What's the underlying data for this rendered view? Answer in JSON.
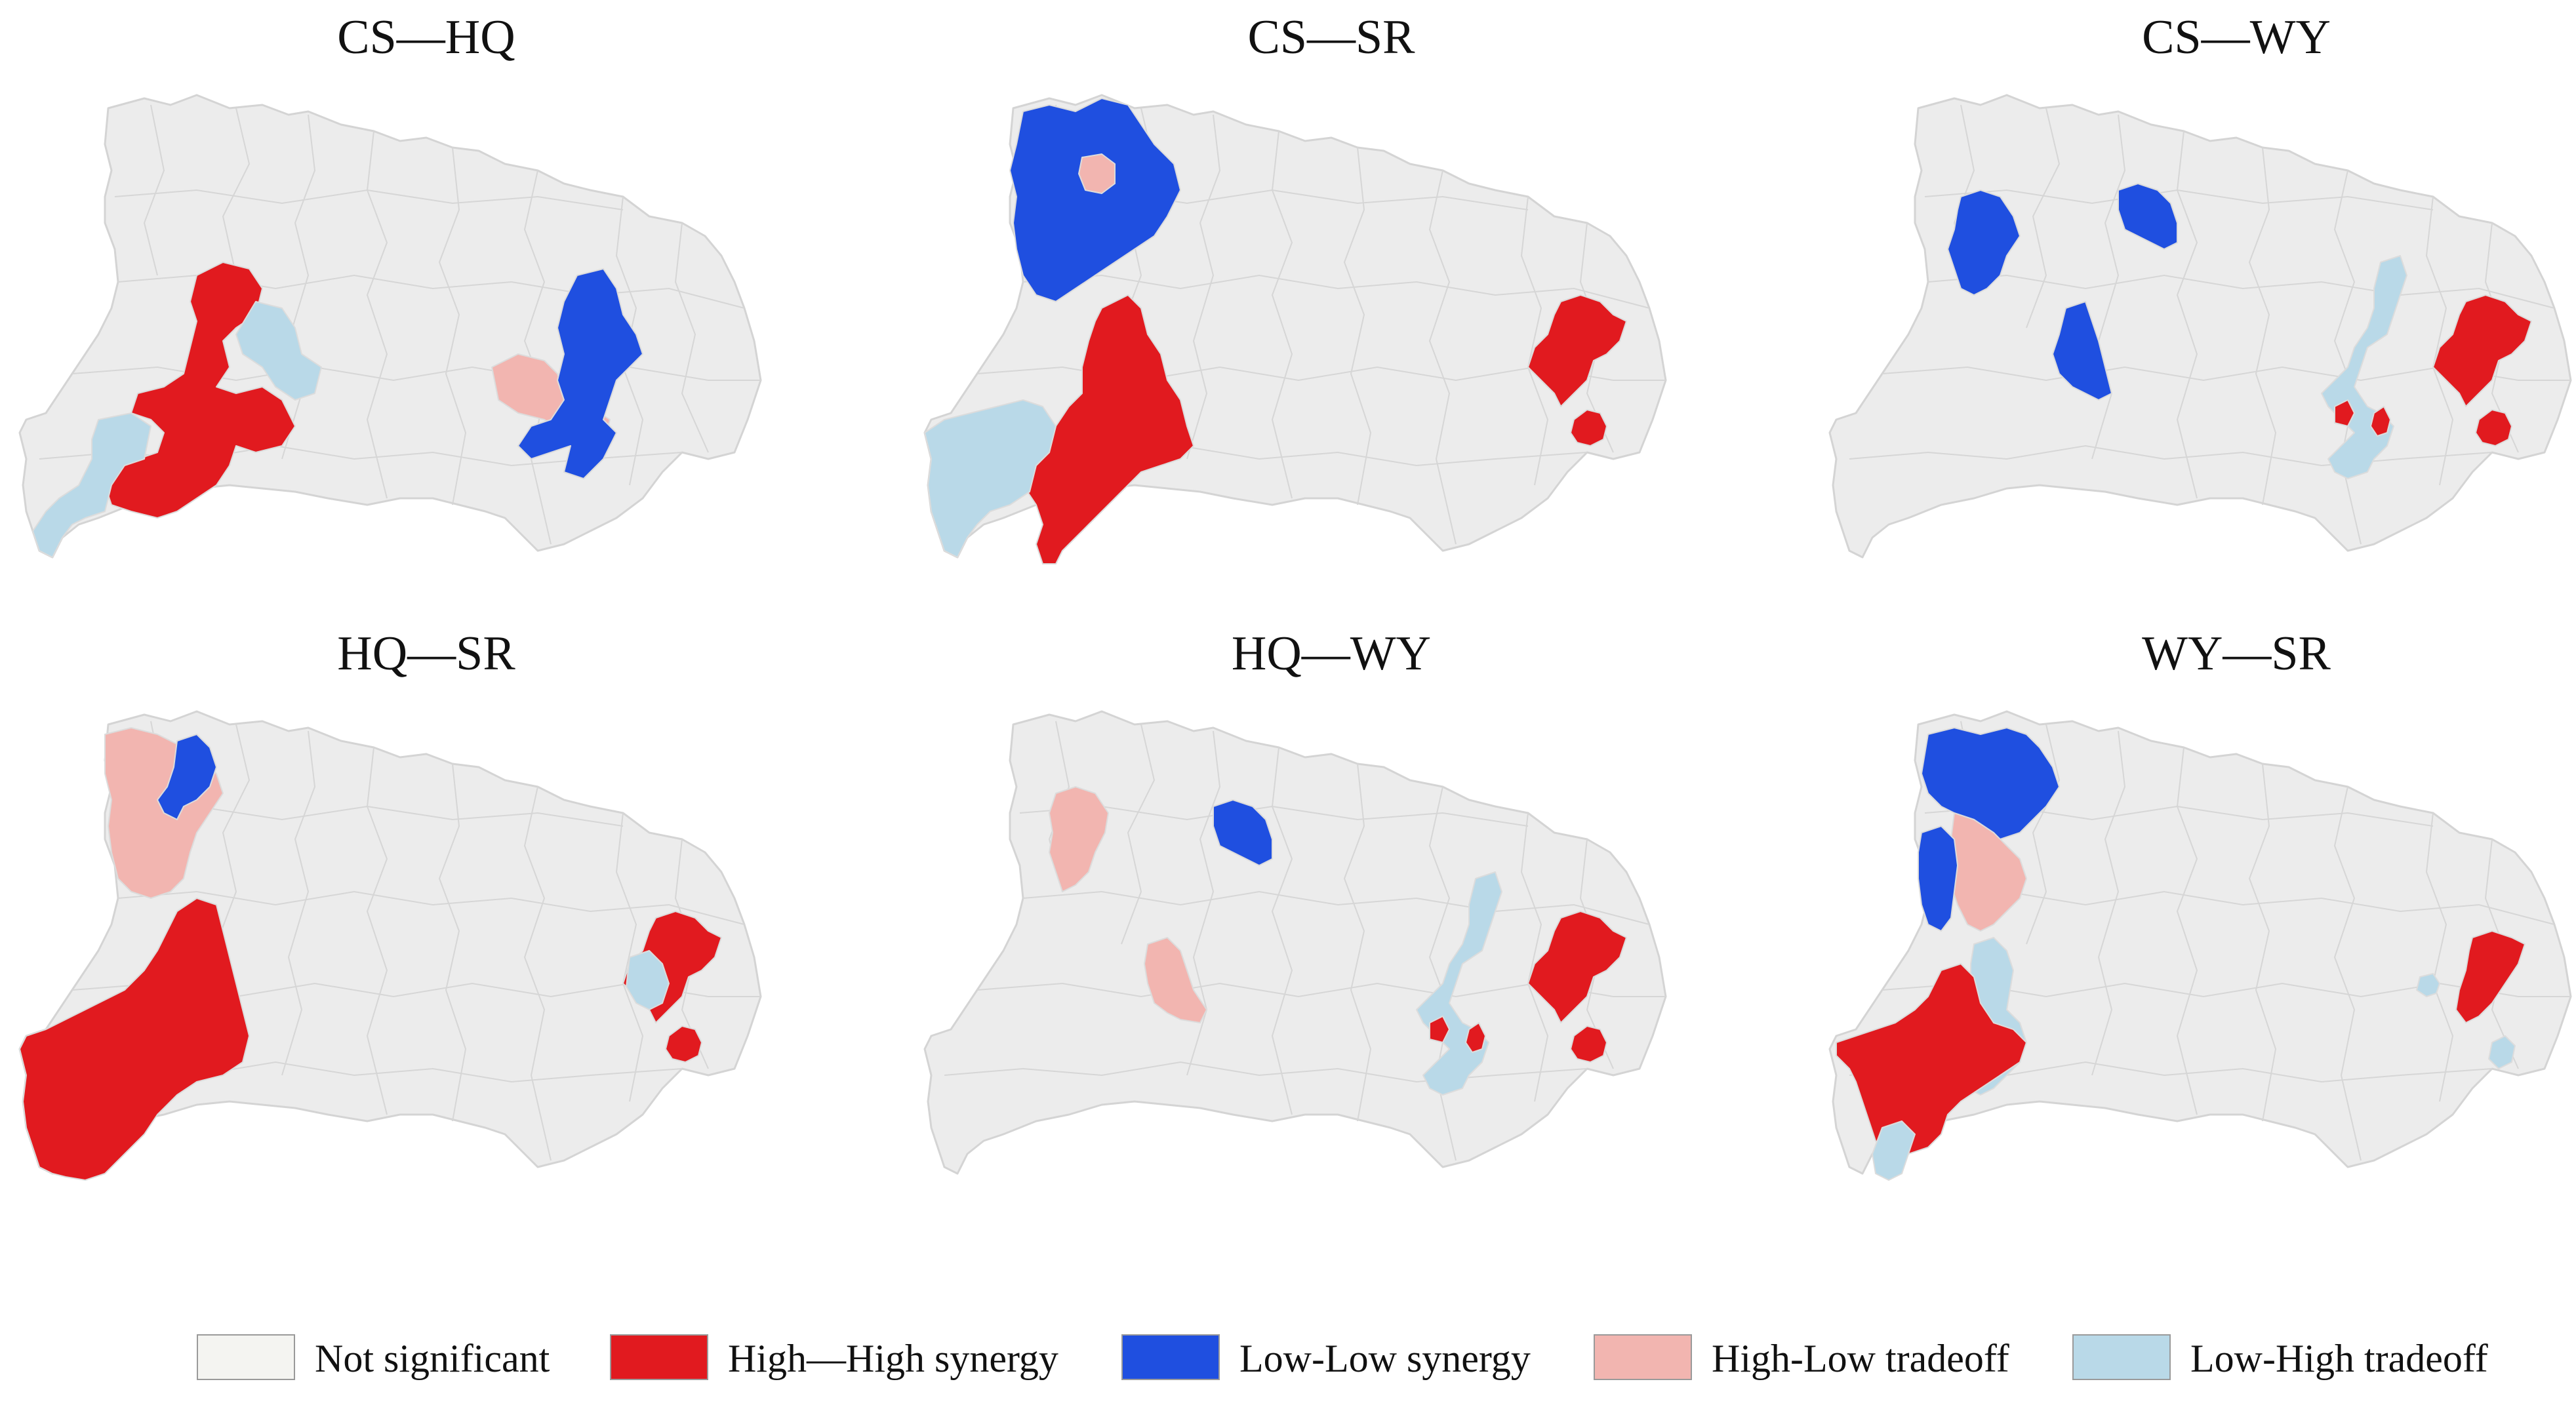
{
  "colors": {
    "not_significant": "#f4f4f1",
    "base_fill": "#ececec",
    "high_high": "#e11a1f",
    "low_low": "#1f4fe0",
    "high_low": "#f2b5b0",
    "low_high": "#b9d9e8"
  },
  "panels": [
    {
      "title": "CS—HQ",
      "patches": [
        {
          "cls": "high_high",
          "shape": "westA"
        },
        {
          "cls": "low_high",
          "shape": "nwStripA"
        },
        {
          "cls": "low_high",
          "shape": "swSmallA"
        },
        {
          "cls": "high_low",
          "shape": "centerSmallA"
        },
        {
          "cls": "low_low",
          "shape": "eastBlueA"
        }
      ]
    },
    {
      "title": "CS—SR",
      "patches": [
        {
          "cls": "low_low",
          "shape": "northBlock"
        },
        {
          "cls": "high_low",
          "shape": "northHole"
        },
        {
          "cls": "high_high",
          "shape": "westCentral"
        },
        {
          "cls": "low_high",
          "shape": "swBlock"
        },
        {
          "cls": "high_high",
          "shape": "eastRed"
        },
        {
          "cls": "high_high",
          "shape": "eastSmallRed"
        }
      ]
    },
    {
      "title": "CS—WY",
      "patches": [
        {
          "cls": "low_low",
          "shape": "nwBlue1"
        },
        {
          "cls": "low_low",
          "shape": "nBlue2"
        },
        {
          "cls": "low_low",
          "shape": "cBlue3"
        },
        {
          "cls": "low_high",
          "shape": "eastLightBand"
        },
        {
          "cls": "high_high",
          "shape": "eastRed"
        },
        {
          "cls": "high_high",
          "shape": "eastSmallRed"
        },
        {
          "cls": "high_high",
          "shape": "centerRedDots"
        }
      ]
    },
    {
      "title": "HQ—SR",
      "patches": [
        {
          "cls": "high_low",
          "shape": "northPink"
        },
        {
          "cls": "low_low",
          "shape": "northBlueSmall"
        },
        {
          "cls": "high_high",
          "shape": "westRedBig"
        },
        {
          "cls": "high_high",
          "shape": "eastRed"
        },
        {
          "cls": "low_high",
          "shape": "eastLightSmall"
        },
        {
          "cls": "high_high",
          "shape": "eastSmallRed"
        }
      ]
    },
    {
      "title": "HQ—WY",
      "patches": [
        {
          "cls": "high_low",
          "shape": "nwPink"
        },
        {
          "cls": "high_low",
          "shape": "cPink"
        },
        {
          "cls": "low_low",
          "shape": "nBlue2"
        },
        {
          "cls": "low_high",
          "shape": "eastLightBand"
        },
        {
          "cls": "high_high",
          "shape": "eastRed"
        },
        {
          "cls": "high_high",
          "shape": "eastSmallRed"
        },
        {
          "cls": "high_high",
          "shape": "centerRedDots"
        }
      ]
    },
    {
      "title": "WY—SR",
      "patches": [
        {
          "cls": "low_low",
          "shape": "northBlockB"
        },
        {
          "cls": "high_low",
          "shape": "northPinkB"
        },
        {
          "cls": "low_low",
          "shape": "westBlueStrip"
        },
        {
          "cls": "low_high",
          "shape": "centerLightB"
        },
        {
          "cls": "high_high",
          "shape": "westRedB"
        },
        {
          "cls": "low_high",
          "shape": "swLightB"
        },
        {
          "cls": "high_high",
          "shape": "eastRedB"
        },
        {
          "cls": "low_high",
          "shape": "eastLightDots"
        }
      ]
    }
  ],
  "legend": [
    {
      "label": "Not significant",
      "cls": "not_significant"
    },
    {
      "label": "High—High synergy",
      "cls": "high_high"
    },
    {
      "label": "Low-Low synergy",
      "cls": "low_low"
    },
    {
      "label": "High-Low tradeoff",
      "cls": "high_low"
    },
    {
      "label": "Low-High tradeoff",
      "cls": "low_high"
    }
  ]
}
